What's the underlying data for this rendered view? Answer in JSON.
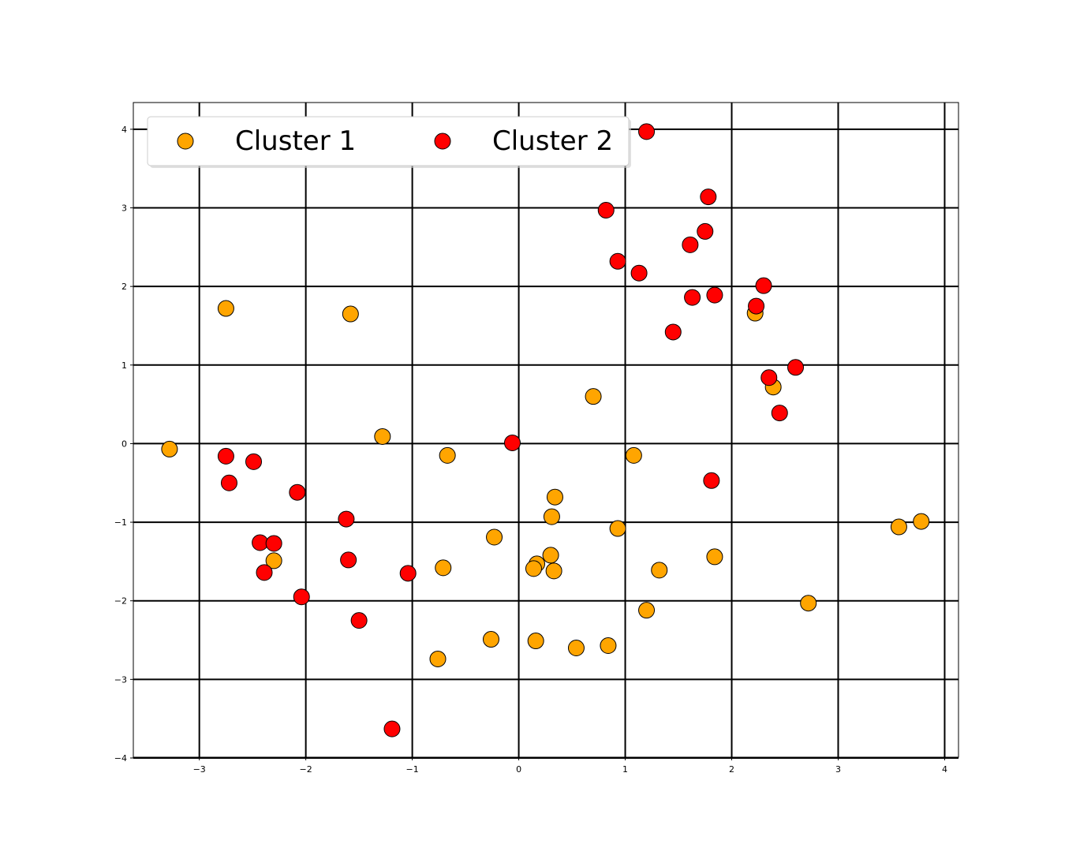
{
  "chart_data": {
    "type": "scatter",
    "title": "",
    "xlabel": "",
    "ylabel": "",
    "xlim": [
      -3.62,
      4.13
    ],
    "ylim": [
      -3.99,
      4.34
    ],
    "xticks": [
      -3,
      -2,
      -1,
      0,
      1,
      2,
      3,
      4
    ],
    "yticks": [
      -4,
      -3,
      -2,
      -1,
      0,
      1,
      2,
      3,
      4
    ],
    "xtick_labels": [
      "−3",
      "−2",
      "−1",
      "0",
      "1",
      "2",
      "3",
      "4"
    ],
    "ytick_labels": [
      "−4",
      "−3",
      "−2",
      "−1",
      "0",
      "1",
      "2",
      "3",
      "4"
    ],
    "grid": true,
    "legend": {
      "placement": "upper-left",
      "columns": 2
    },
    "series": [
      {
        "name": "Cluster 1",
        "color": "#FFA500",
        "points": [
          [
            -2.75,
            1.72
          ],
          [
            -1.58,
            1.65
          ],
          [
            -3.28,
            -0.07
          ],
          [
            -1.28,
            0.09
          ],
          [
            -0.67,
            -0.15
          ],
          [
            0.7,
            0.6
          ],
          [
            1.08,
            -0.15
          ],
          [
            0.34,
            -0.68
          ],
          [
            0.31,
            -0.93
          ],
          [
            0.93,
            -1.08
          ],
          [
            -0.23,
            -1.19
          ],
          [
            0.3,
            -1.42
          ],
          [
            0.17,
            -1.53
          ],
          [
            0.14,
            -1.59
          ],
          [
            0.33,
            -1.62
          ],
          [
            -0.71,
            -1.58
          ],
          [
            1.32,
            -1.61
          ],
          [
            1.84,
            -1.44
          ],
          [
            -2.3,
            -1.49
          ],
          [
            1.2,
            -2.12
          ],
          [
            2.72,
            -2.03
          ],
          [
            -0.26,
            -2.49
          ],
          [
            0.16,
            -2.51
          ],
          [
            0.54,
            -2.6
          ],
          [
            0.84,
            -2.57
          ],
          [
            -0.76,
            -2.74
          ],
          [
            3.57,
            -1.06
          ],
          [
            3.78,
            -0.99
          ],
          [
            2.22,
            1.66
          ],
          [
            2.39,
            0.72
          ]
        ]
      },
      {
        "name": "Cluster 2",
        "color": "#FF0000",
        "points": [
          [
            1.2,
            3.97
          ],
          [
            1.78,
            3.14
          ],
          [
            0.82,
            2.97
          ],
          [
            1.75,
            2.7
          ],
          [
            1.61,
            2.53
          ],
          [
            0.93,
            2.32
          ],
          [
            1.13,
            2.17
          ],
          [
            2.3,
            2.01
          ],
          [
            1.63,
            1.86
          ],
          [
            1.84,
            1.89
          ],
          [
            2.23,
            1.75
          ],
          [
            1.45,
            1.42
          ],
          [
            2.6,
            0.97
          ],
          [
            2.35,
            0.84
          ],
          [
            2.45,
            0.39
          ],
          [
            -0.06,
            0.01
          ],
          [
            1.81,
            -0.47
          ],
          [
            -2.75,
            -0.16
          ],
          [
            -2.49,
            -0.23
          ],
          [
            -2.72,
            -0.5
          ],
          [
            -2.08,
            -0.62
          ],
          [
            -1.62,
            -0.96
          ],
          [
            -2.43,
            -1.26
          ],
          [
            -2.3,
            -1.27
          ],
          [
            -1.6,
            -1.48
          ],
          [
            -2.39,
            -1.64
          ],
          [
            -1.04,
            -1.65
          ],
          [
            -2.04,
            -1.95
          ],
          [
            -1.5,
            -2.25
          ],
          [
            -1.19,
            -3.63
          ]
        ]
      }
    ]
  }
}
